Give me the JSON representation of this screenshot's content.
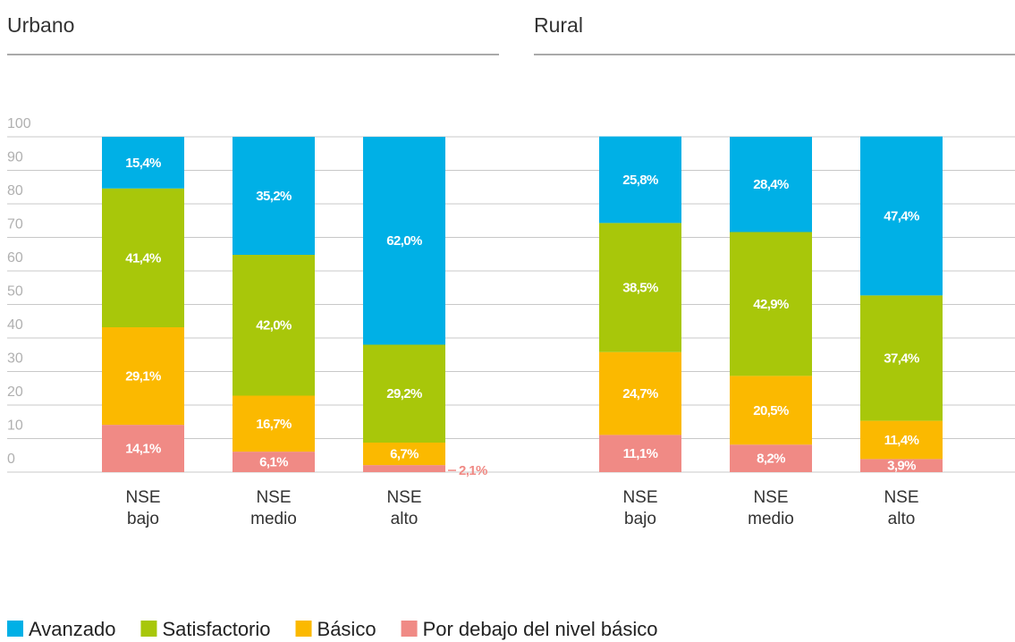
{
  "chart_data": [
    {
      "type": "stacked_bar",
      "title": "Urbano",
      "categories": [
        [
          "NSE",
          "bajo"
        ],
        [
          "NSE",
          "medio"
        ],
        [
          "NSE",
          "alto"
        ]
      ],
      "ylim": [
        0,
        100
      ],
      "yticks": [
        0,
        10,
        20,
        30,
        40,
        50,
        60,
        70,
        80,
        90,
        100
      ],
      "grid": true,
      "series": [
        {
          "name": "Avanzado",
          "color": "#00b0e6",
          "values": [
            15.4,
            35.2,
            62.0
          ],
          "value_labels": [
            "15,4%",
            "35,2%",
            "62,0%"
          ]
        },
        {
          "name": "Satisfactorio",
          "color": "#a8c70a",
          "values": [
            41.4,
            42.0,
            29.2
          ],
          "value_labels": [
            "41,4%",
            "42,0%",
            "29,2%"
          ]
        },
        {
          "name": "Básico",
          "color": "#fbb900",
          "values": [
            29.1,
            16.7,
            6.7
          ],
          "value_labels": [
            "29,1%",
            "16,7%",
            "6,7%"
          ]
        },
        {
          "name": "Por debajo del nivel básico",
          "color": "#f08a85",
          "values": [
            14.1,
            6.1,
            2.1
          ],
          "value_labels": [
            "14,1%",
            "6,1%",
            "2,1%"
          ]
        }
      ]
    },
    {
      "type": "stacked_bar",
      "title": "Rural",
      "categories": [
        [
          "NSE",
          "bajo"
        ],
        [
          "NSE",
          "medio"
        ],
        [
          "NSE",
          "alto"
        ]
      ],
      "ylim": [
        0,
        100
      ],
      "series": [
        {
          "name": "Avanzado",
          "color": "#00b0e6",
          "values": [
            25.8,
            28.4,
            47.4
          ],
          "value_labels": [
            "25,8%",
            "28,4%",
            "47,4%"
          ]
        },
        {
          "name": "Satisfactorio",
          "color": "#a8c70a",
          "values": [
            38.5,
            42.9,
            37.4
          ],
          "value_labels": [
            "38,5%",
            "42,9%",
            "37,4%"
          ]
        },
        {
          "name": "Básico",
          "color": "#fbb900",
          "values": [
            24.7,
            20.5,
            11.4
          ],
          "value_labels": [
            "24,7%",
            "20,5%",
            "11,4%"
          ]
        },
        {
          "name": "Por debajo del nivel básico",
          "color": "#f08a85",
          "values": [
            11.1,
            8.2,
            3.9
          ],
          "value_labels": [
            "11,1%",
            "8,2%",
            "3,9%"
          ]
        }
      ]
    }
  ]
}
